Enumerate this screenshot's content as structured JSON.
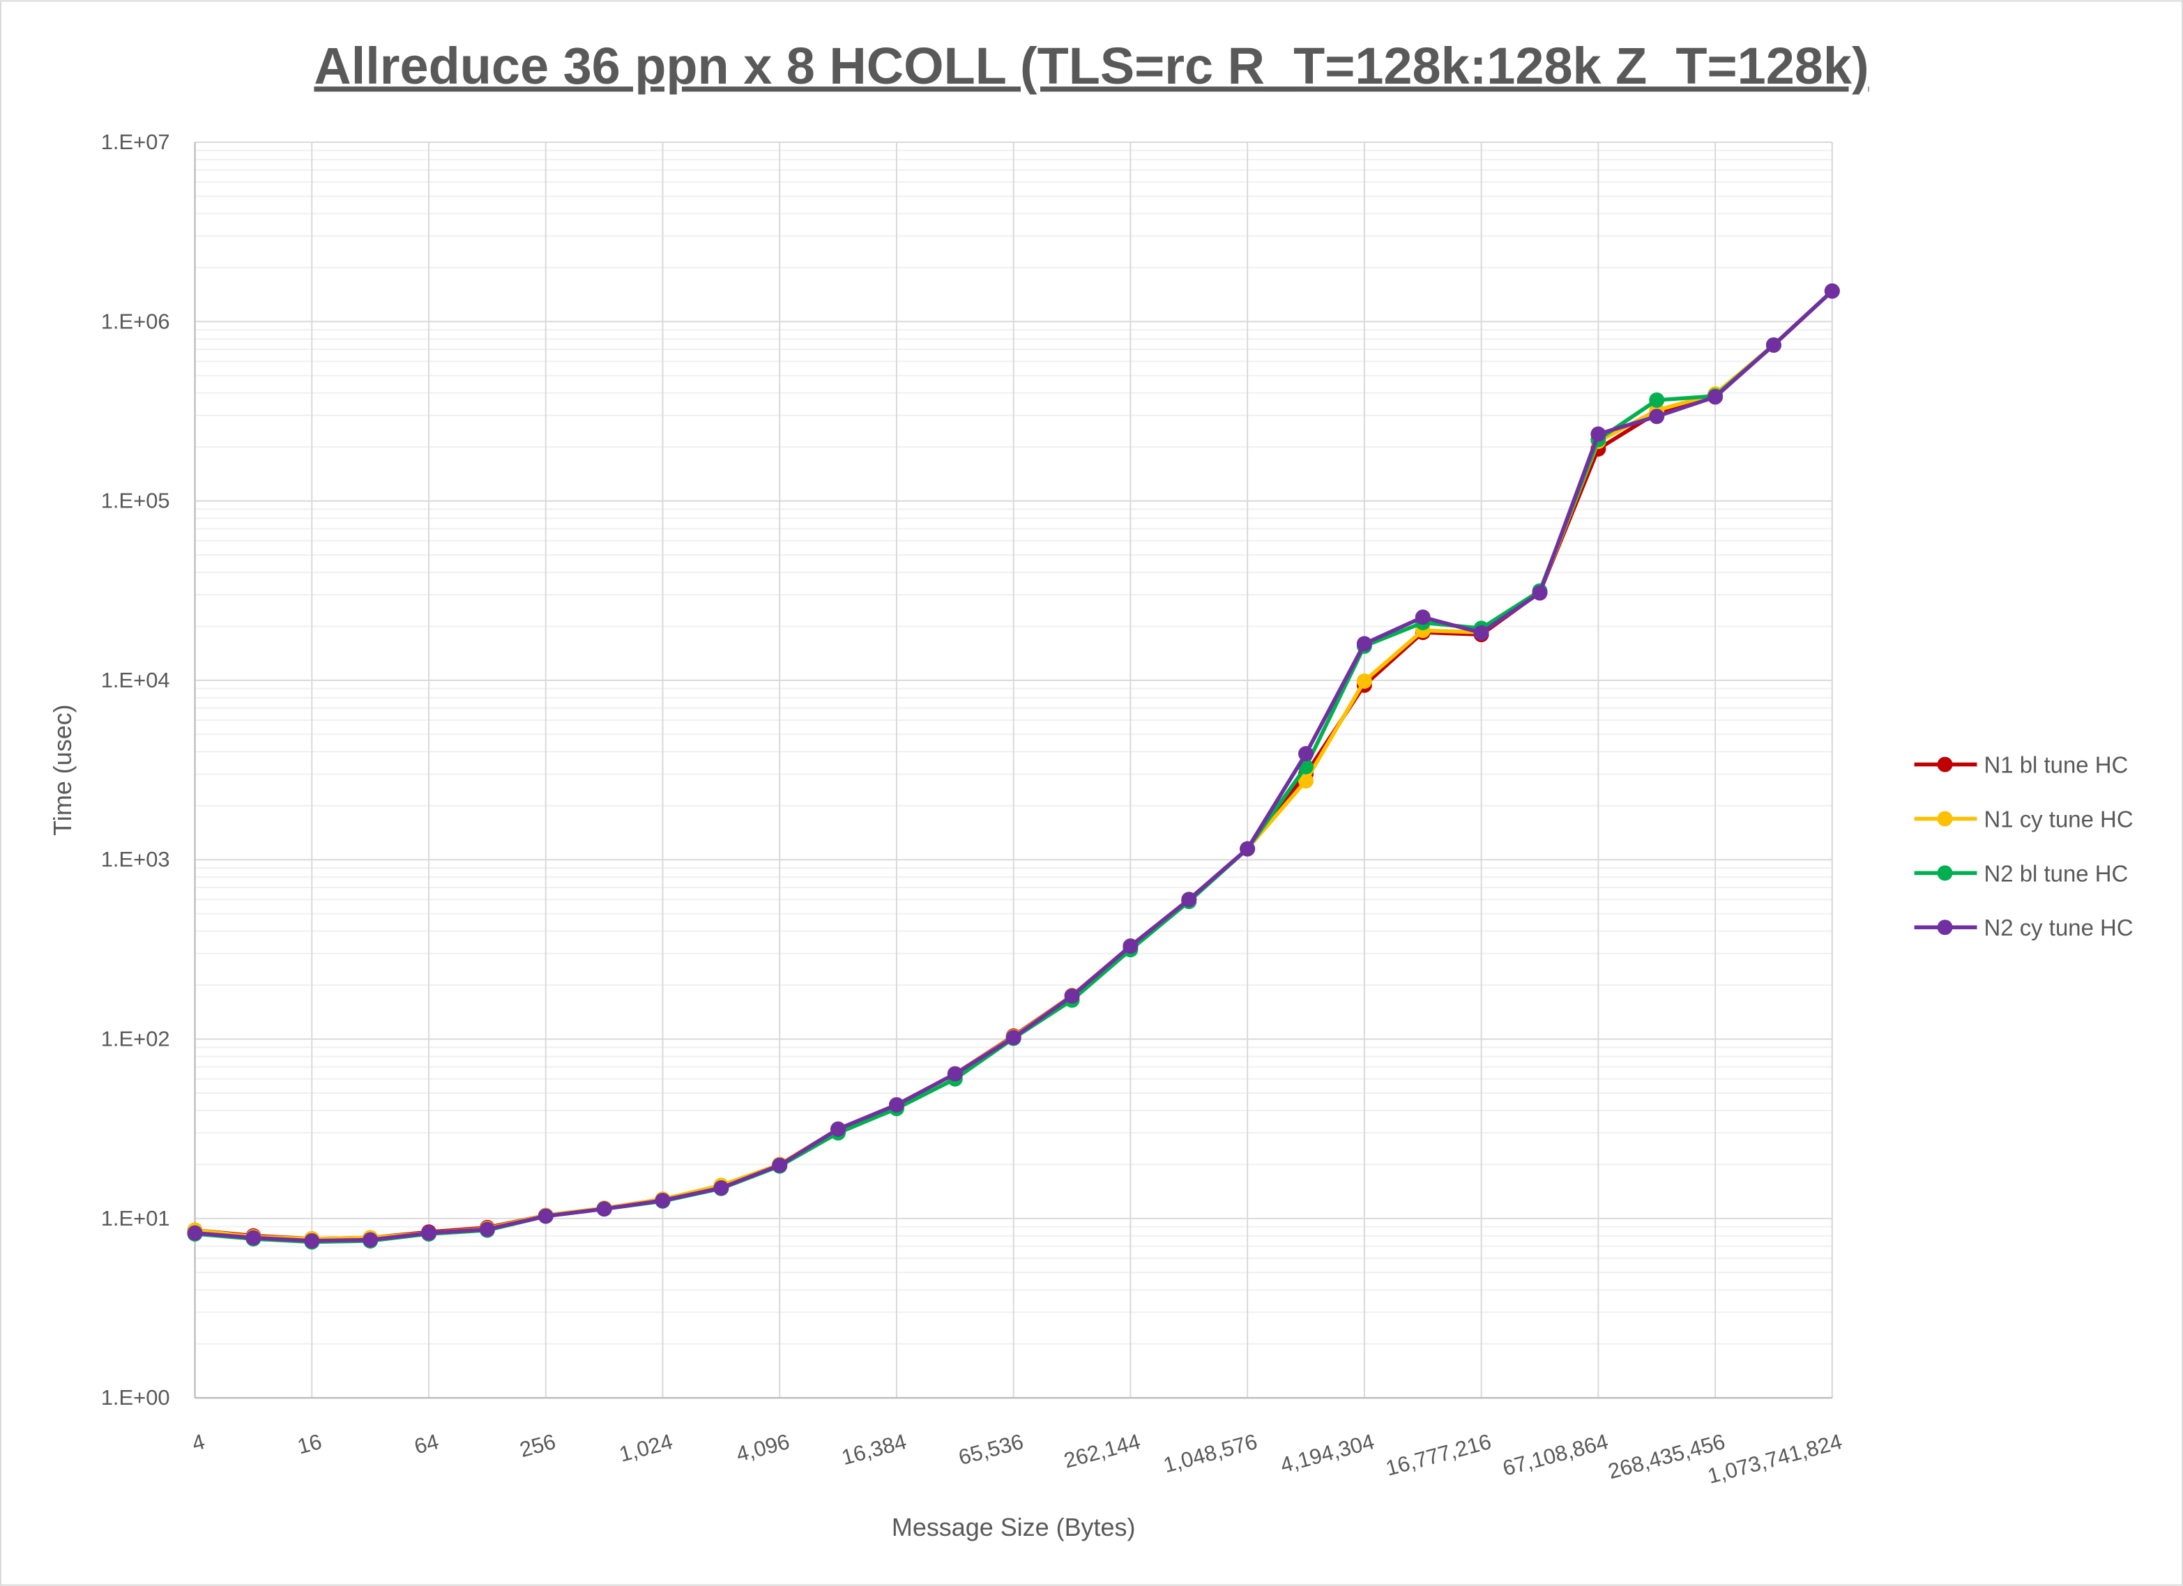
{
  "chart_data": {
    "type": "line",
    "title": "Allreduce 36 ppn x 8 HCOLL (TLS=rc R_T=128k:128k Z_T=128k)",
    "xlabel": "Message Size (Bytes)",
    "ylabel": "Time (usec)",
    "yscale": "log",
    "ylim": [
      1,
      10000000
    ],
    "xscale": "log2",
    "y_tick_labels": [
      "1.E+00",
      "1.E+01",
      "1.E+02",
      "1.E+03",
      "1.E+04",
      "1.E+05",
      "1.E+06",
      "1.E+07"
    ],
    "x_tick_labels": [
      "4",
      "16",
      "64",
      "256",
      "1,024",
      "4,096",
      "16,384",
      "65,536",
      "262,144",
      "1,048,576",
      "4,194,304",
      "16,777,216",
      "67,108,864",
      "268,435,456",
      "1,073,741,824"
    ],
    "grid": true,
    "legend_position": "right",
    "x": [
      4,
      8,
      16,
      32,
      64,
      128,
      256,
      512,
      1024,
      2048,
      4096,
      8192,
      16384,
      32768,
      65536,
      131072,
      262144,
      524288,
      1048576,
      2097152,
      4194304,
      8388608,
      16777216,
      33554432,
      67108864,
      134217728,
      268435456,
      536870912,
      1073741824
    ],
    "series": [
      {
        "name": "N1 bl tune HC",
        "color": "#c00000",
        "values": [
          8.6,
          8.0,
          7.7,
          7.8,
          8.4,
          8.9,
          10.4,
          11.4,
          12.8,
          15.2,
          20.0,
          31.5,
          43,
          64,
          104,
          175,
          330,
          600,
          1150,
          3000,
          9400,
          18500,
          18000,
          31000,
          195000,
          310000,
          390000,
          740000,
          1480000
        ]
      },
      {
        "name": "N1 cy tune HC",
        "color": "#ffc000",
        "values": [
          8.6,
          7.9,
          7.7,
          7.8,
          8.3,
          8.8,
          10.4,
          11.4,
          12.8,
          15.3,
          20.0,
          31.5,
          43,
          64,
          103,
          175,
          330,
          600,
          1150,
          2750,
          9900,
          19000,
          18500,
          31000,
          215000,
          320000,
          395000,
          740000,
          1480000
        ]
      },
      {
        "name": "N2 bl tune HC",
        "color": "#00b050",
        "values": [
          8.2,
          7.7,
          7.4,
          7.5,
          8.2,
          8.6,
          10.3,
          11.3,
          12.5,
          14.7,
          19.6,
          30,
          41,
          60,
          101,
          165,
          315,
          585,
          1150,
          3300,
          15500,
          21000,
          19500,
          31500,
          220000,
          365000,
          385000,
          740000,
          1480000
        ]
      },
      {
        "name": "N2 cy tune HC",
        "color": "#7030a0",
        "values": [
          8.3,
          7.8,
          7.5,
          7.6,
          8.3,
          8.7,
          10.3,
          11.3,
          12.6,
          14.8,
          19.8,
          31.5,
          43,
          64,
          102,
          174,
          330,
          600,
          1150,
          3900,
          16000,
          22500,
          18400,
          30700,
          236000,
          296000,
          380000,
          740000,
          1480000
        ]
      }
    ]
  }
}
